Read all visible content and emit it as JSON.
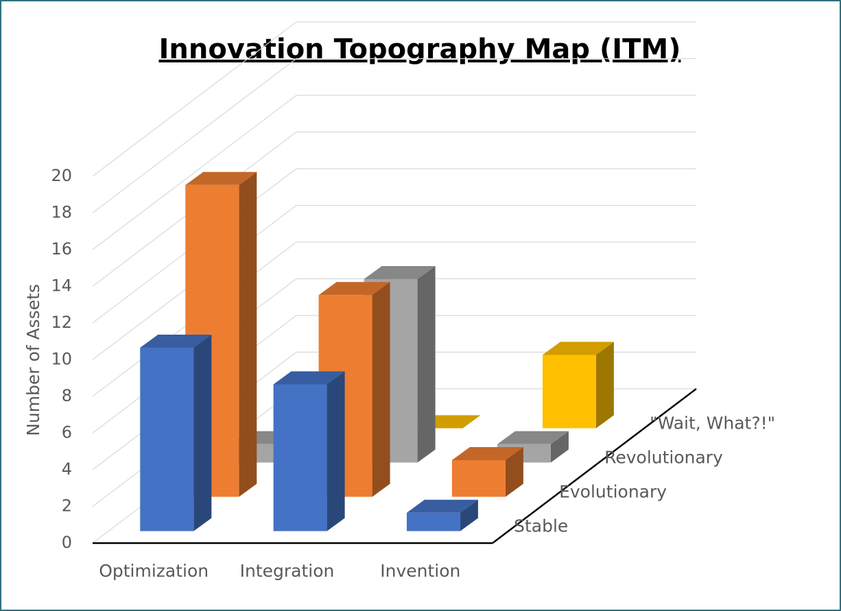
{
  "chart_data": {
    "type": "bar",
    "title": "Innovation Topography Map (ITM)",
    "y_label": "Number of Assets",
    "categories": [
      "Optimization",
      "Integration",
      "Invention"
    ],
    "series": [
      {
        "name": "Stable",
        "color": "#4472c4",
        "values": [
          10,
          8,
          1
        ]
      },
      {
        "name": "Evolutionary",
        "color": "#ed7d31",
        "values": [
          17,
          11,
          2
        ]
      },
      {
        "name": "Revolutionary",
        "color": "#a5a5a5",
        "values": [
          1,
          10,
          1
        ]
      },
      {
        "name": "\"Wait, What?!\"",
        "color": "#ffc000",
        "values": [
          0,
          0,
          4
        ]
      }
    ],
    "ylim": [
      0,
      20
    ],
    "yticks": [
      0,
      2,
      4,
      6,
      8,
      10,
      12,
      14,
      16,
      18,
      20
    ],
    "grid": true
  }
}
